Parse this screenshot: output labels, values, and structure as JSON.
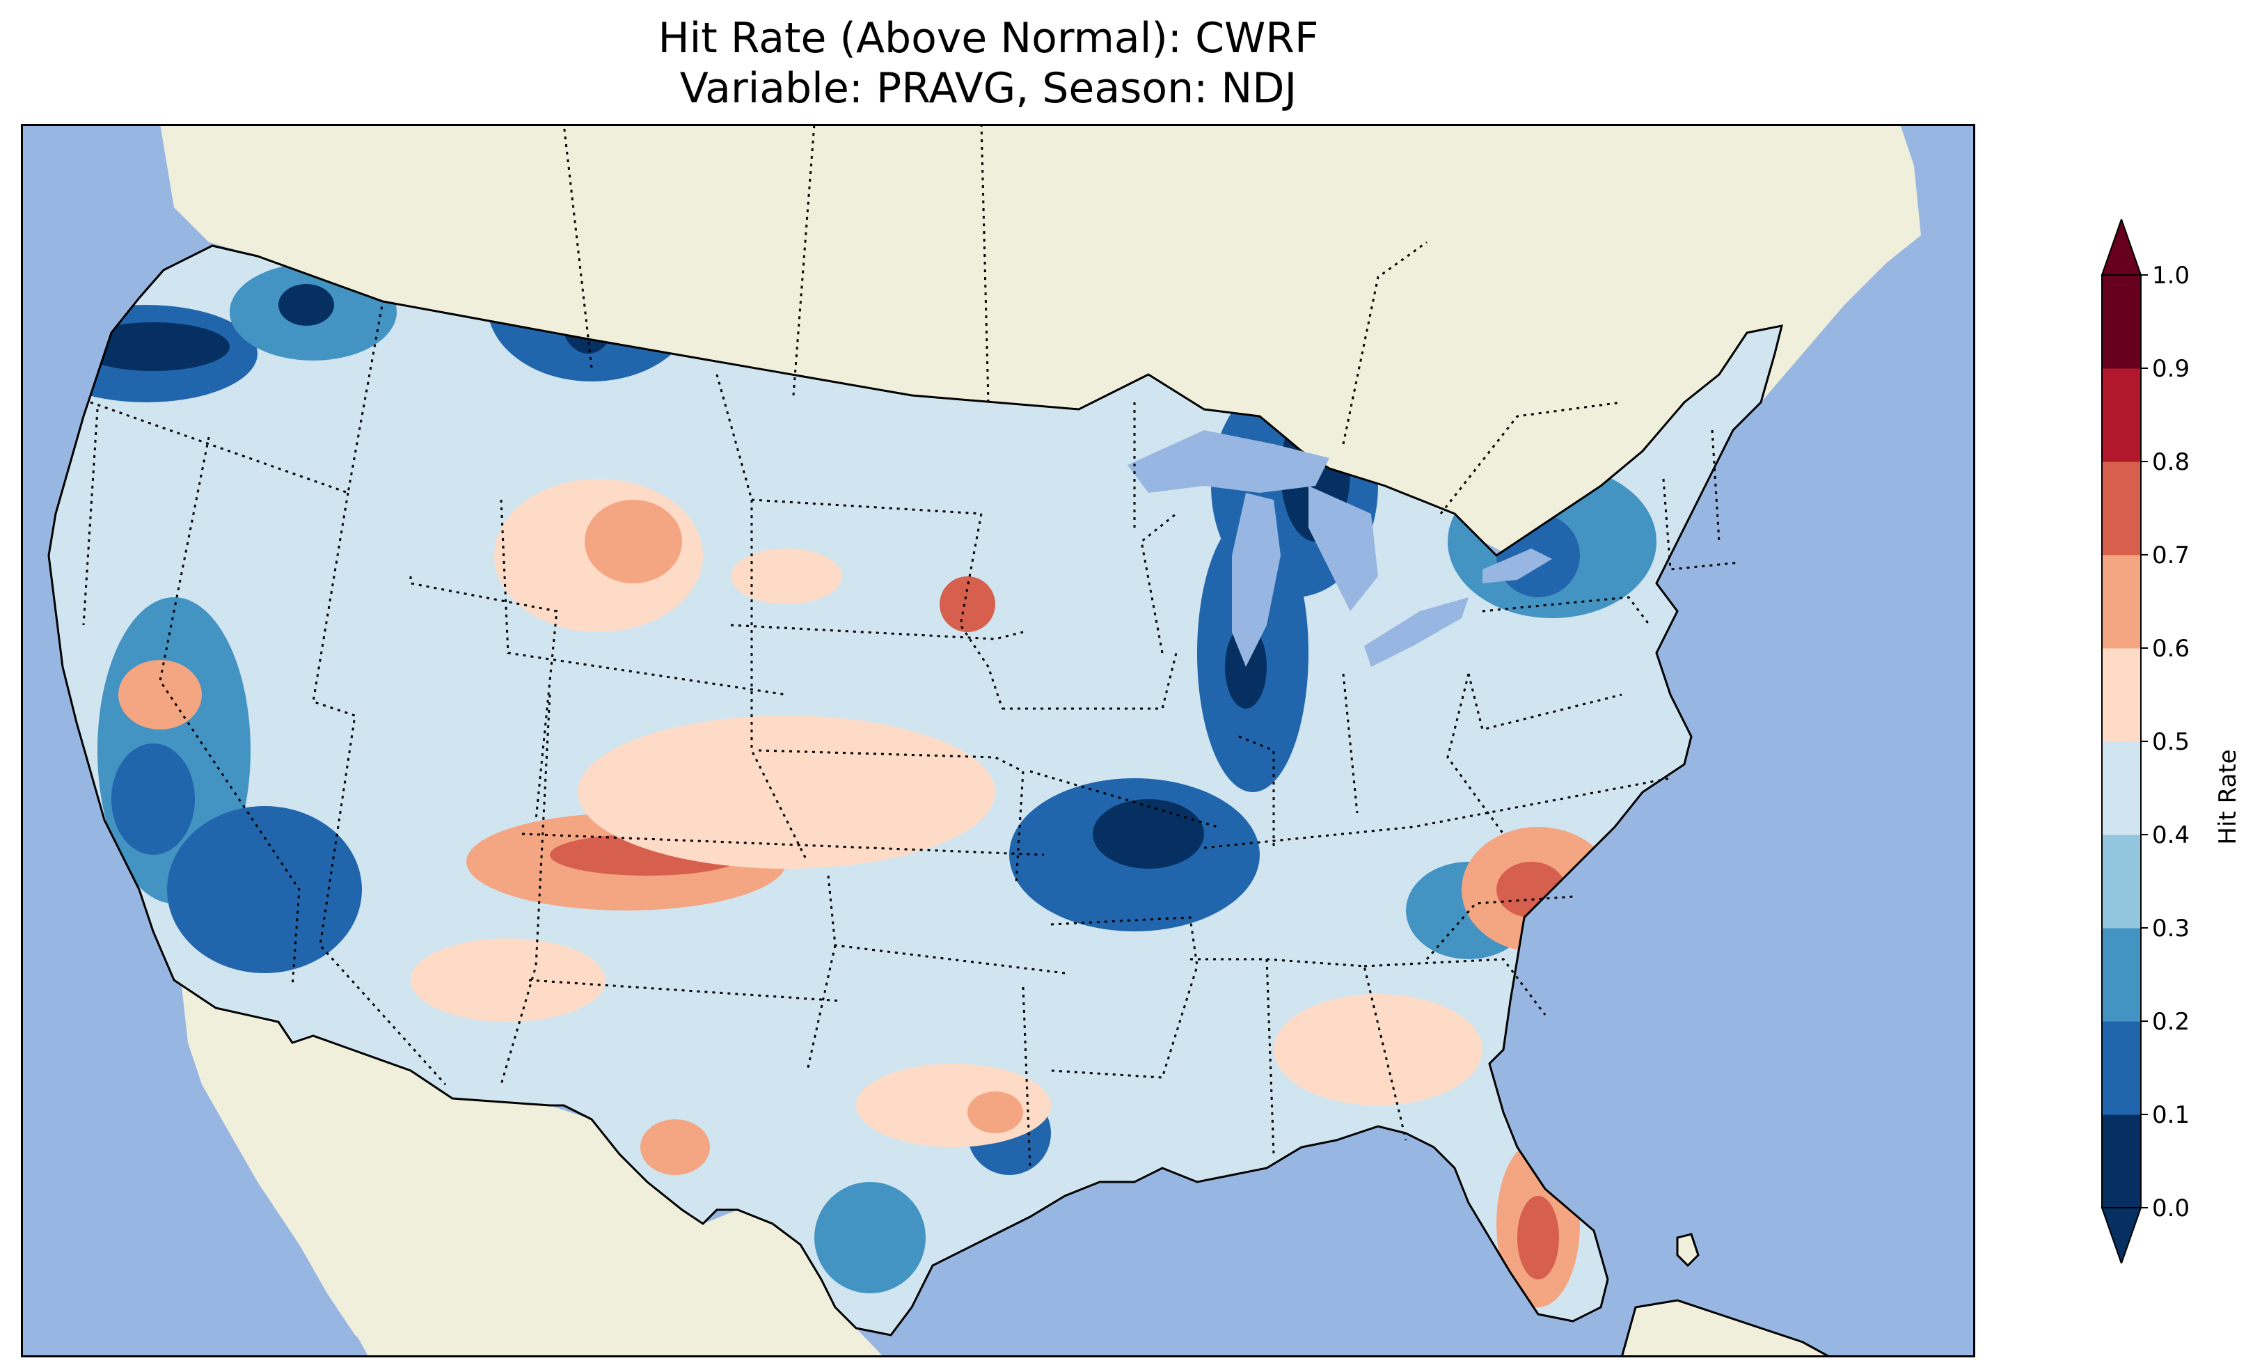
{
  "title": {
    "line1": "Hit Rate (Above Normal): CWRF",
    "line2": "Variable: PRAVG, Season: NDJ"
  },
  "colorbar": {
    "label": "Hit Rate",
    "ticks": [
      "0.0",
      "0.1",
      "0.2",
      "0.3",
      "0.4",
      "0.5",
      "0.6",
      "0.7",
      "0.8",
      "0.9",
      "1.0"
    ],
    "colors": [
      "#053061",
      "#2166ac",
      "#4393c3",
      "#92c5de",
      "#d1e5f0",
      "#fddbc7",
      "#f4a582",
      "#d6604d",
      "#b2182b",
      "#67001f"
    ],
    "extend": "both"
  },
  "map": {
    "ocean_color": "#97b6e1",
    "land_color": "#efefdb",
    "region": "Contiguous United States"
  }
}
